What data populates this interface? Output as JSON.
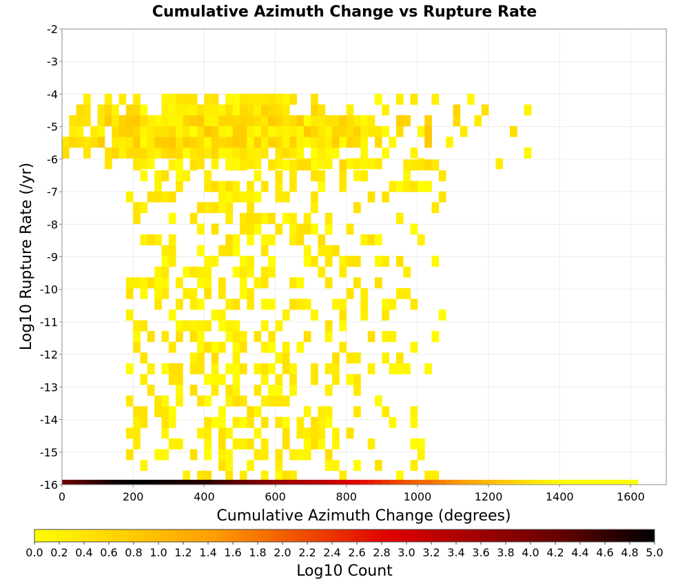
{
  "chart_data": {
    "type": "heatmap",
    "title": "Cumulative Azimuth Change vs Rupture Rate",
    "xlabel": "Cumulative Azimuth Change (degrees)",
    "ylabel": "Log10 Rupture Rate (/yr)",
    "xlim": [
      0,
      1700
    ],
    "ylim": [
      -16,
      -2
    ],
    "x_ticks": [
      "0",
      "200",
      "400",
      "600",
      "800",
      "1000",
      "1200",
      "1400",
      "1600"
    ],
    "y_ticks": [
      "-2",
      "-3",
      "-4",
      "-5",
      "-6",
      "-7",
      "-8",
      "-9",
      "-10",
      "-11",
      "-12",
      "-13",
      "-14",
      "-15",
      "-16"
    ],
    "grid": true,
    "colorbar": {
      "label": "Log10 Count",
      "range": [
        0,
        5
      ],
      "ticks": [
        "0.0",
        "0.2",
        "0.4",
        "0.6",
        "0.8",
        "1.0",
        "1.2",
        "1.4",
        "1.6",
        "1.8",
        "2.0",
        "2.2",
        "2.4",
        "2.6",
        "2.8",
        "3.0",
        "3.2",
        "3.4",
        "3.6",
        "3.8",
        "4.0",
        "4.2",
        "4.4",
        "4.6",
        "4.8",
        "5.0"
      ],
      "colormap": [
        "#ffff00",
        "#ffd000",
        "#ff9f00",
        "#f05000",
        "#e00000",
        "#a00000",
        "#600000",
        "#000000"
      ]
    },
    "cell_size": {
      "x": 20,
      "y": 0.33
    },
    "bottom_band": {
      "y_bottom": -16,
      "y_top": -15.85,
      "values": [
        4.2,
        4.3,
        4.4,
        4.5,
        4.6,
        4.7,
        4.8,
        4.9,
        4.95,
        5.0,
        5.0,
        5.0,
        4.95,
        4.9,
        4.9,
        4.85,
        4.8,
        4.8,
        4.75,
        4.7,
        4.7,
        4.6,
        4.5,
        4.4,
        4.3,
        4.2,
        4.1,
        4.0,
        3.9,
        3.8,
        3.7,
        3.6,
        3.5,
        3.5,
        3.4,
        3.3,
        3.3,
        3.2,
        3.1,
        3.0,
        2.9,
        2.8,
        2.7,
        2.6,
        2.5,
        2.4,
        2.3,
        2.2,
        2.1,
        2.0,
        1.9,
        1.9,
        1.8,
        1.7,
        1.6,
        1.5,
        1.4,
        1.3,
        1.2,
        1.1,
        1.0,
        0.9,
        0.8,
        0.7,
        0.6,
        0.5,
        0.4,
        0.3,
        0.2,
        0.1,
        0.05,
        0.0,
        0.0,
        0.0,
        0.0,
        0.0,
        0.0,
        0.0,
        0.0,
        0.0,
        0.0
      ]
    },
    "bands": [
      {
        "y_min": -6.3,
        "y_max": -4.0,
        "x_min": 0,
        "x_max": 1320,
        "density": 0.6,
        "value_max": 0.9,
        "peak_y": -5.3,
        "peak_x": 450
      },
      {
        "y_min": -7.0,
        "y_max": -6.3,
        "x_min": 200,
        "x_max": 1140,
        "density": 0.3,
        "value_max": 0.6
      },
      {
        "y_min": -15.9,
        "y_max": -7.2,
        "x_min": 180,
        "x_max": 1070,
        "density": 0.28,
        "value_max": 0.5,
        "peak_x": 480
      }
    ]
  }
}
